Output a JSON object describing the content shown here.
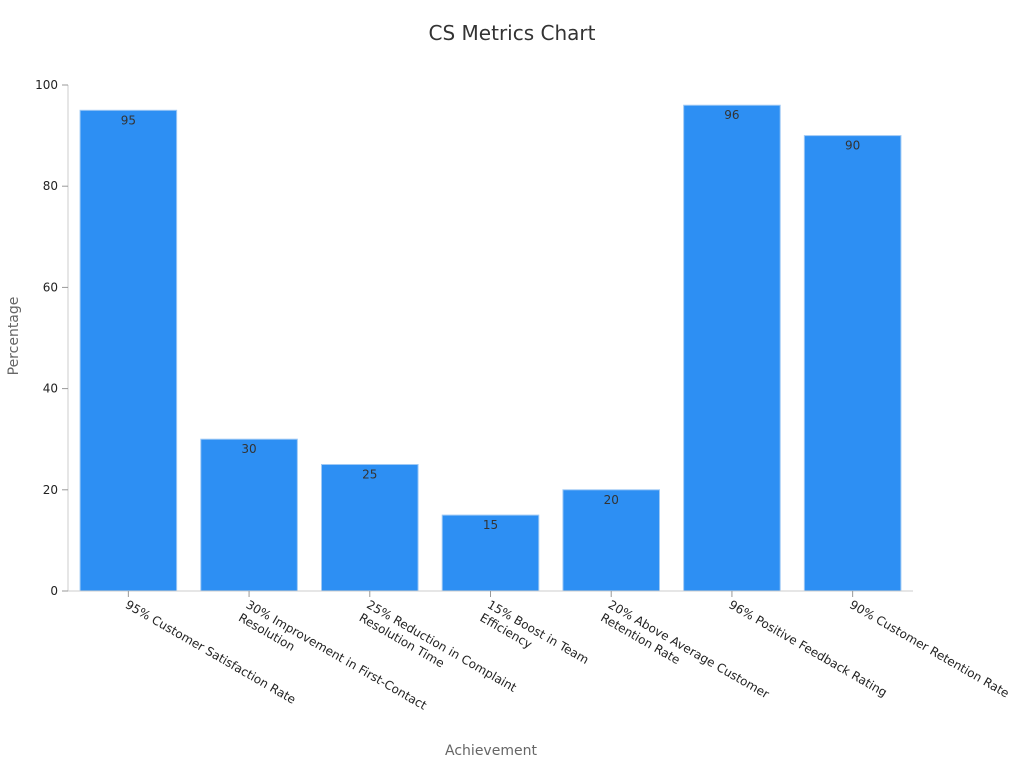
{
  "chart_data": {
    "type": "bar",
    "title": "CS Metrics Chart",
    "xlabel": "Achievement",
    "ylabel": "Percentage",
    "categories": [
      [
        "95% Customer Satisfaction Rate"
      ],
      [
        "30% Improvement in First-Contact",
        "Resolution"
      ],
      [
        "25% Reduction in Complaint",
        "Resolution Time"
      ],
      [
        "15% Boost in Team",
        "Efficiency"
      ],
      [
        "20% Above Average Customer",
        "Retention Rate"
      ],
      [
        "96% Positive Feedback Rating"
      ],
      [
        "90% Customer Retention Rate"
      ]
    ],
    "values": [
      95,
      30,
      25,
      15,
      20,
      96,
      90
    ],
    "ylim": [
      0,
      100
    ],
    "yticks": [
      0,
      20,
      40,
      60,
      80,
      100
    ],
    "grid": false,
    "legend": "none",
    "bar_color": "#2d8ff3",
    "data_labels": true
  }
}
